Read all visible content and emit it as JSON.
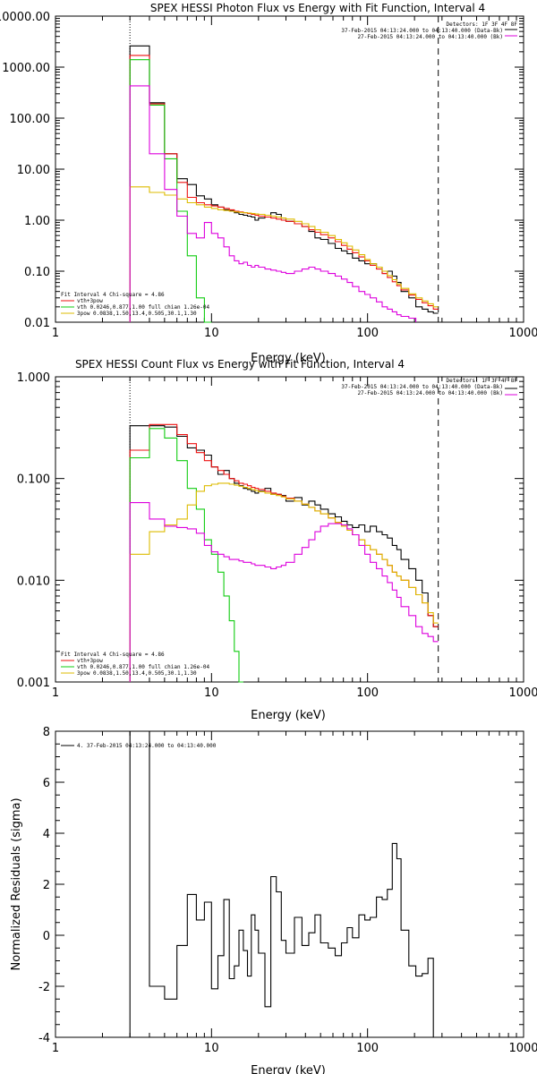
{
  "colors": {
    "background": "#ffffff",
    "axes": "#000000",
    "data": "#000000",
    "total": "#ee1111",
    "thermal": "#11cc11",
    "powerlaw": "#ddbb00",
    "background_counts": "#dd00dd"
  },
  "chart_data": [
    {
      "type": "line",
      "title": "SPEX HESSI Photon Flux vs Energy with Fit Function, Interval 4",
      "xlabel": "Energy (keV)",
      "ylabel": "",
      "xscale": "log",
      "yscale": "log",
      "xlim": [
        1,
        1000
      ],
      "ylim": [
        0.01,
        10000
      ],
      "x_tick_labels": [
        "1",
        "10",
        "100",
        "1000"
      ],
      "y_tick_labels": [
        "0.01",
        "0.10",
        "1.00",
        "10.00",
        "100.00",
        "1000.00",
        "10000.00"
      ],
      "x_edges": [
        3,
        4,
        5,
        6,
        7,
        8,
        9,
        10,
        11,
        12,
        13,
        14,
        15,
        16,
        17,
        18,
        19,
        20,
        22,
        24,
        26,
        28,
        30,
        34,
        38,
        42,
        46,
        50,
        56,
        62,
        68,
        74,
        80,
        88,
        96,
        104,
        114,
        124,
        134,
        144,
        154,
        164,
        184,
        204,
        224,
        244,
        264,
        284
      ],
      "energy_range_markers": [
        3,
        284
      ],
      "legend_top_right": {
        "header": "Detectors: 1F 3F 4F 8F",
        "entries": [
          {
            "label": "37-Feb-2015 04:13:24.000 to 04:13:40.000 (Data-Bk)",
            "color": "#000000"
          },
          {
            "label": "27-Feb-2015 04:13:24.000 to 04:13:40.000 (Bk)",
            "color": "#dd00dd"
          }
        ]
      },
      "legend_bottom_left": {
        "header": "Fit Interval 4   Chi-square = 4.86",
        "entries": [
          {
            "label": "vth+3pow",
            "color": "#ee1111"
          },
          {
            "label": "vth 0.0246,0.877,1.00  full chian 1.26e-04",
            "color": "#11cc11"
          },
          {
            "label": "3pow 0.0838,1.50,13.4,0.505,30.1,1.30",
            "color": "#ddbb00"
          }
        ]
      },
      "series": [
        {
          "name": "Data-Bk",
          "color": "#000000",
          "values": [
            2600,
            200,
            20,
            6.5,
            5,
            3,
            2.6,
            2,
            1.8,
            1.6,
            1.55,
            1.4,
            1.3,
            1.25,
            1.2,
            1.15,
            1.0,
            1.1,
            1.15,
            1.4,
            1.3,
            1.1,
            0.95,
            0.85,
            0.75,
            0.6,
            0.45,
            0.42,
            0.35,
            0.28,
            0.25,
            0.22,
            0.18,
            0.16,
            0.14,
            0.14,
            0.12,
            0.09,
            0.1,
            0.08,
            0.06,
            0.04,
            0.03,
            0.02,
            0.018,
            0.016,
            0.015
          ]
        },
        {
          "name": "vth+3pow",
          "color": "#ee1111",
          "values": [
            1700,
            190,
            20,
            5.5,
            2.8,
            2.2,
            2,
            1.9,
            1.8,
            1.7,
            1.6,
            1.5,
            1.45,
            1.4,
            1.35,
            1.3,
            1.25,
            1.2,
            1.15,
            1.1,
            1.05,
            1.0,
            0.95,
            0.85,
            0.75,
            0.65,
            0.58,
            0.52,
            0.45,
            0.38,
            0.32,
            0.27,
            0.23,
            0.19,
            0.16,
            0.13,
            0.11,
            0.09,
            0.075,
            0.062,
            0.052,
            0.043,
            0.034,
            0.028,
            0.024,
            0.021,
            0.018
          ]
        },
        {
          "name": "vth",
          "color": "#11cc11",
          "values": [
            1400,
            180,
            16,
            1.5,
            0.2,
            0.03,
            0.01
          ]
        },
        {
          "name": "3pow",
          "color": "#ddbb00",
          "values": [
            4.5,
            3.5,
            3.1,
            2.6,
            2.2,
            2.0,
            1.8,
            1.7,
            1.6,
            1.55,
            1.5,
            1.45,
            1.42,
            1.4,
            1.38,
            1.35,
            1.32,
            1.3,
            1.25,
            1.2,
            1.15,
            1.1,
            1.05,
            0.95,
            0.85,
            0.75,
            0.65,
            0.58,
            0.5,
            0.42,
            0.36,
            0.31,
            0.26,
            0.21,
            0.17,
            0.14,
            0.12,
            0.1,
            0.082,
            0.068,
            0.056,
            0.046,
            0.036,
            0.03,
            0.026,
            0.023,
            0.02
          ]
        },
        {
          "name": "Bk",
          "color": "#dd00dd",
          "values": [
            430,
            20,
            4,
            1.2,
            0.55,
            0.45,
            0.9,
            0.55,
            0.45,
            0.3,
            0.2,
            0.16,
            0.14,
            0.15,
            0.13,
            0.12,
            0.13,
            0.12,
            0.11,
            0.105,
            0.1,
            0.095,
            0.09,
            0.1,
            0.11,
            0.12,
            0.11,
            0.1,
            0.09,
            0.08,
            0.07,
            0.06,
            0.05,
            0.04,
            0.035,
            0.03,
            0.025,
            0.02,
            0.018,
            0.016,
            0.014,
            0.013,
            0.012
          ]
        }
      ]
    },
    {
      "type": "line",
      "title": "SPEX HESSI Count Flux vs Energy with Fit Function, Interval 4",
      "xlabel": "Energy (keV)",
      "ylabel": "",
      "xscale": "log",
      "yscale": "log",
      "xlim": [
        1,
        1000
      ],
      "ylim": [
        0.001,
        1.0
      ],
      "x_tick_labels": [
        "1",
        "10",
        "100",
        "1000"
      ],
      "y_tick_labels": [
        "0.001",
        "0.010",
        "0.100",
        "1.000"
      ],
      "x_edges": [
        3,
        4,
        5,
        6,
        7,
        8,
        9,
        10,
        11,
        12,
        13,
        14,
        15,
        16,
        17,
        18,
        19,
        20,
        22,
        24,
        26,
        28,
        30,
        34,
        38,
        42,
        46,
        50,
        56,
        62,
        68,
        74,
        80,
        88,
        96,
        104,
        114,
        124,
        134,
        144,
        154,
        164,
        184,
        204,
        224,
        244,
        264,
        284
      ],
      "energy_range_markers": [
        3,
        284
      ],
      "legend_top_right": {
        "header": "Detectors: 1F 3F 4F 8F",
        "entries": [
          {
            "label": "37-Feb-2015 04:13:24.000 to 04:13:40.000 (Data-Bk)",
            "color": "#000000"
          },
          {
            "label": "27-Feb-2015 04:13:24.000 to 04:13:40.000 (Bk)",
            "color": "#dd00dd"
          }
        ]
      },
      "legend_bottom_left": {
        "header": "Fit Interval 4   Chi-square = 4.86",
        "entries": [
          {
            "label": "vth+3pow",
            "color": "#ee1111"
          },
          {
            "label": "vth 0.0246,0.877,1.00  full chian 1.26e-04",
            "color": "#11cc11"
          },
          {
            "label": "3pow 0.0838,1.50,13.4,0.505,30.1,1.30",
            "color": "#ddbb00"
          }
        ]
      },
      "series": [
        {
          "name": "Data-Bk",
          "color": "#000000",
          "values": [
            0.33,
            0.33,
            0.32,
            0.26,
            0.2,
            0.19,
            0.17,
            0.13,
            0.11,
            0.12,
            0.1,
            0.09,
            0.085,
            0.08,
            0.078,
            0.075,
            0.072,
            0.075,
            0.08,
            0.07,
            0.07,
            0.068,
            0.06,
            0.065,
            0.055,
            0.06,
            0.055,
            0.05,
            0.045,
            0.042,
            0.038,
            0.035,
            0.033,
            0.035,
            0.03,
            0.034,
            0.03,
            0.028,
            0.026,
            0.022,
            0.02,
            0.016,
            0.013,
            0.01,
            0.0075,
            0.0045,
            0.0035
          ]
        },
        {
          "name": "vth+3pow",
          "color": "#ee1111",
          "values": [
            0.19,
            0.34,
            0.34,
            0.27,
            0.22,
            0.18,
            0.15,
            0.13,
            0.12,
            0.11,
            0.1,
            0.095,
            0.09,
            0.088,
            0.085,
            0.082,
            0.08,
            0.078,
            0.075,
            0.072,
            0.07,
            0.067,
            0.064,
            0.06,
            0.056,
            0.052,
            0.048,
            0.045,
            0.041,
            0.037,
            0.034,
            0.031,
            0.028,
            0.025,
            0.022,
            0.02,
            0.018,
            0.016,
            0.014,
            0.012,
            0.011,
            0.01,
            0.0085,
            0.0072,
            0.006,
            0.0045,
            0.0035
          ]
        },
        {
          "name": "vth",
          "color": "#11cc11",
          "values": [
            0.16,
            0.31,
            0.25,
            0.15,
            0.08,
            0.05,
            0.025,
            0.018,
            0.012,
            0.007,
            0.004,
            0.002,
            0.001
          ]
        },
        {
          "name": "3pow",
          "color": "#ddbb00",
          "values": [
            0.018,
            0.03,
            0.035,
            0.04,
            0.055,
            0.075,
            0.085,
            0.088,
            0.09,
            0.09,
            0.088,
            0.086,
            0.084,
            0.082,
            0.08,
            0.078,
            0.076,
            0.074,
            0.072,
            0.07,
            0.068,
            0.066,
            0.063,
            0.06,
            0.056,
            0.052,
            0.048,
            0.045,
            0.041,
            0.037,
            0.034,
            0.031,
            0.028,
            0.025,
            0.022,
            0.02,
            0.018,
            0.016,
            0.014,
            0.012,
            0.011,
            0.01,
            0.0085,
            0.0072,
            0.006,
            0.0048,
            0.0038
          ]
        },
        {
          "name": "Bk",
          "color": "#dd00dd",
          "values": [
            0.058,
            0.04,
            0.034,
            0.033,
            0.032,
            0.029,
            0.022,
            0.019,
            0.018,
            0.017,
            0.016,
            0.016,
            0.0155,
            0.015,
            0.015,
            0.0145,
            0.014,
            0.014,
            0.0135,
            0.013,
            0.0135,
            0.014,
            0.015,
            0.018,
            0.021,
            0.025,
            0.03,
            0.034,
            0.036,
            0.036,
            0.035,
            0.032,
            0.028,
            0.022,
            0.018,
            0.015,
            0.013,
            0.011,
            0.0095,
            0.008,
            0.0068,
            0.0055,
            0.0045,
            0.0035,
            0.003,
            0.0028,
            0.0025
          ]
        }
      ]
    },
    {
      "type": "line",
      "title": "",
      "xlabel": "Energy (keV)",
      "ylabel": "Normalized Residuals (sigma)",
      "xscale": "log",
      "yscale": "linear",
      "xlim": [
        1,
        1000
      ],
      "ylim": [
        -4,
        8
      ],
      "x_tick_labels": [
        "1",
        "10",
        "100",
        "1000"
      ],
      "y_tick_labels": [
        "-4",
        "-2",
        "0",
        "2",
        "4",
        "6",
        "8"
      ],
      "x_edges": [
        3,
        4,
        5,
        6,
        7,
        8,
        9,
        10,
        11,
        12,
        13,
        14,
        15,
        16,
        17,
        18,
        19,
        20,
        22,
        24,
        26,
        28,
        30,
        34,
        38,
        42,
        46,
        50,
        56,
        62,
        68,
        74,
        80,
        88,
        96,
        104,
        114,
        124,
        134,
        144,
        154,
        164,
        184,
        204,
        224,
        244,
        264,
        284
      ],
      "legend_top_left": {
        "entries": [
          {
            "label": "4. 37-Feb-2015 04:13:24.000 to 04:13:40.000",
            "color": "#000000"
          }
        ]
      },
      "series": [
        {
          "name": "4. 37-Feb-2015 04:13:24.000 to 04:13:40.000",
          "color": "#000000",
          "values": [
            8.0,
            -2.0,
            -2.5,
            -0.4,
            1.6,
            0.6,
            1.3,
            -2.1,
            -0.8,
            1.4,
            -1.7,
            -1.2,
            0.2,
            -0.6,
            -1.6,
            0.8,
            0.2,
            -0.7,
            -2.8,
            2.3,
            1.7,
            -0.2,
            -0.7,
            0.7,
            -0.4,
            0.1,
            0.8,
            -0.3,
            -0.5,
            -0.8,
            -0.3,
            0.3,
            -0.1,
            0.8,
            0.6,
            0.7,
            1.5,
            1.4,
            1.8,
            3.6,
            3.0,
            0.2,
            -1.2,
            -1.6,
            -1.5,
            -0.9,
            -4.0
          ]
        }
      ]
    }
  ]
}
